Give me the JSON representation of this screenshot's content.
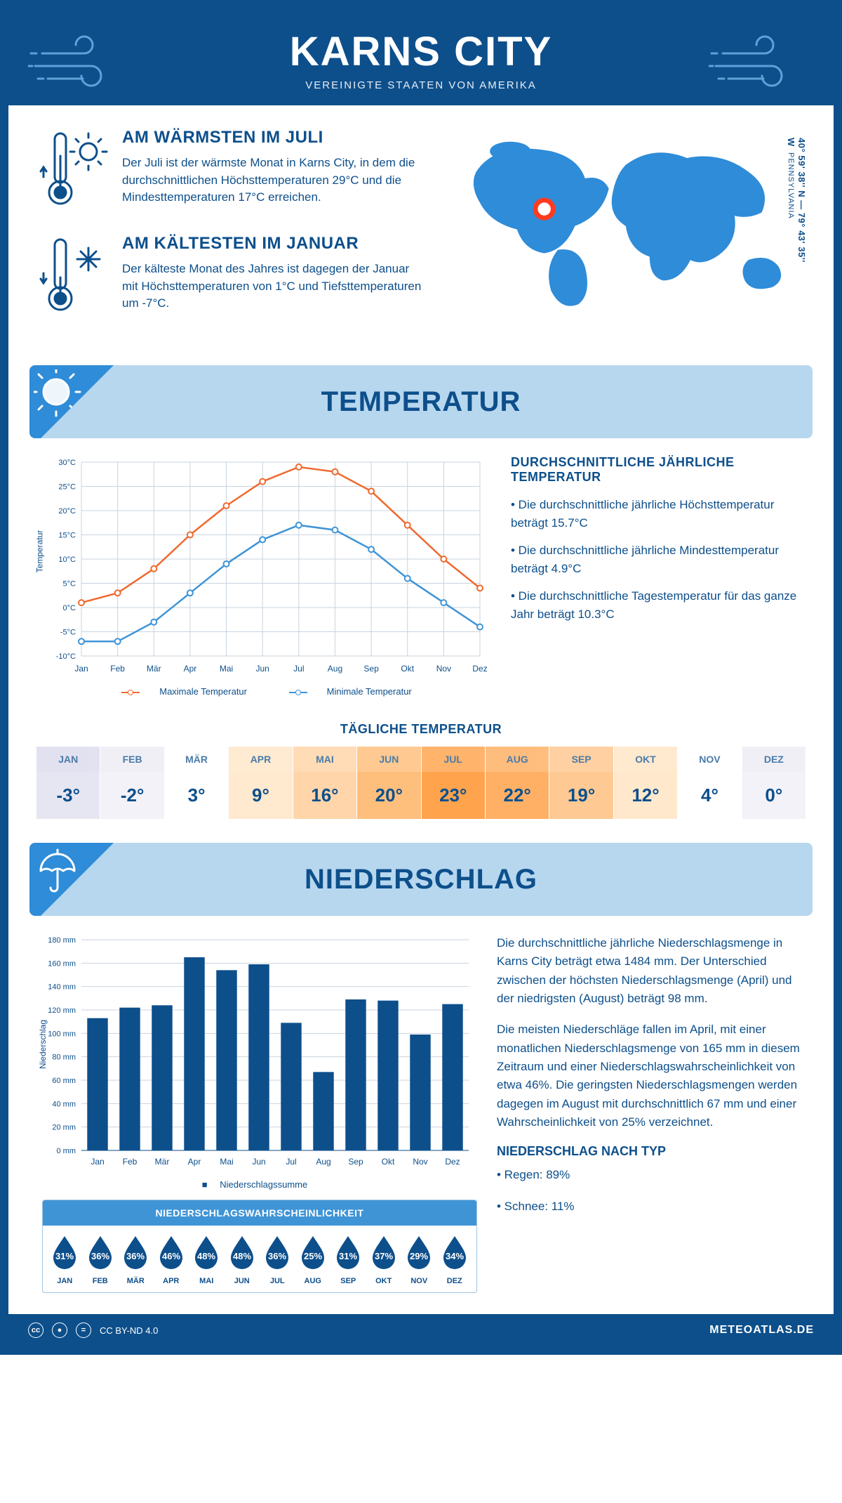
{
  "header": {
    "title": "KARNS CITY",
    "subtitle": "VEREINIGTE STAATEN VON AMERIKA"
  },
  "coords": {
    "text": "40° 59' 38'' N — 79° 43' 35'' W",
    "state": "PENNSYLVANIA"
  },
  "intro": {
    "warm": {
      "title": "AM WÄRMSTEN IM JULI",
      "body": "Der Juli ist der wärmste Monat in Karns City, in dem die durchschnittlichen Höchsttemperaturen 29°C und die Mindesttemperaturen 17°C erreichen."
    },
    "cold": {
      "title": "AM KÄLTESTEN IM JANUAR",
      "body": "Der kälteste Monat des Jahres ist dagegen der Januar mit Höchsttemperaturen von 1°C und Tiefsttemperaturen um -7°C."
    }
  },
  "sections": {
    "temp_banner": "TEMPERATUR",
    "precip_banner": "NIEDERSCHLAG"
  },
  "months": [
    "Jan",
    "Feb",
    "Mär",
    "Apr",
    "Mai",
    "Jun",
    "Jul",
    "Aug",
    "Sep",
    "Okt",
    "Nov",
    "Dez"
  ],
  "months_uc": [
    "JAN",
    "FEB",
    "MÄR",
    "APR",
    "MAI",
    "JUN",
    "JUL",
    "AUG",
    "SEP",
    "OKT",
    "NOV",
    "DEZ"
  ],
  "temp_chart": {
    "type": "line",
    "ylabel": "Temperatur",
    "ylim": [
      -10,
      30
    ],
    "ytick_step": 5,
    "y_suffix": "°C",
    "max_series": {
      "label": "Maximale Temperatur",
      "color": "#ef6a2f",
      "values": [
        1,
        3,
        8,
        15,
        21,
        26,
        29,
        28,
        24,
        17,
        10,
        4
      ]
    },
    "min_series": {
      "label": "Minimale Temperatur",
      "color": "#3f94d6",
      "values": [
        -7,
        -7,
        -3,
        3,
        9,
        14,
        17,
        16,
        12,
        6,
        1,
        -4
      ]
    },
    "grid_color": "#c9d3df",
    "background_color": "#ffffff"
  },
  "temp_text": {
    "heading": "DURCHSCHNITTLICHE JÄHRLICHE TEMPERATUR",
    "bullets": [
      "• Die durchschnittliche jährliche Höchsttemperatur beträgt 15.7°C",
      "• Die durchschnittliche jährliche Mindesttemperatur beträgt 4.9°C",
      "• Die durchschnittliche Tagestemperatur für das ganze Jahr beträgt 10.3°C"
    ]
  },
  "daily": {
    "title": "TÄGLICHE TEMPERATUR",
    "values": [
      "-3°",
      "-2°",
      "3°",
      "9°",
      "16°",
      "20°",
      "23°",
      "22°",
      "19°",
      "12°",
      "4°",
      "0°"
    ],
    "top_colors": [
      "#d8d8ec",
      "#eceaf4",
      "#ffffff",
      "#ffe4c4",
      "#ffcf9e",
      "#ffb86d",
      "#ff9a3a",
      "#ffa852",
      "#ffc182",
      "#ffe2bf",
      "#ffffff",
      "#eceaf4"
    ],
    "val_colors": [
      "#e6e6f2",
      "#f3f2f8",
      "#ffffff",
      "#ffe9cf",
      "#ffd5a9",
      "#ffbf7c",
      "#ffa34d",
      "#ffb064",
      "#ffc993",
      "#ffe8cc",
      "#ffffff",
      "#f3f2f8"
    ]
  },
  "precip_chart": {
    "type": "bar",
    "ylabel": "Niederschlag",
    "ylim": [
      0,
      180
    ],
    "ytick_step": 20,
    "y_suffix": " mm",
    "values": [
      113,
      122,
      124,
      165,
      154,
      159,
      109,
      67,
      129,
      128,
      99,
      125
    ],
    "bar_color": "#0d4f8b",
    "grid_color": "#c9d3df",
    "legend": "Niederschlagssumme"
  },
  "precip_text": {
    "p1": "Die durchschnittliche jährliche Niederschlagsmenge in Karns City beträgt etwa 1484 mm. Der Unterschied zwischen der höchsten Niederschlagsmenge (April) und der niedrigsten (August) beträgt 98 mm.",
    "p2": "Die meisten Niederschläge fallen im April, mit einer monatlichen Niederschlagsmenge von 165 mm in diesem Zeitraum und einer Niederschlagswahrscheinlichkeit von etwa 46%. Die geringsten Niederschlagsmengen werden dagegen im August mit durchschnittlich 67 mm und einer Wahrscheinlichkeit von 25% verzeichnet.",
    "type_heading": "NIEDERSCHLAG NACH TYP",
    "types": [
      "• Regen: 89%",
      "• Schnee: 11%"
    ]
  },
  "prob": {
    "heading": "NIEDERSCHLAGSWAHRSCHEINLICHKEIT",
    "values": [
      "31%",
      "36%",
      "36%",
      "46%",
      "48%",
      "48%",
      "36%",
      "25%",
      "31%",
      "37%",
      "29%",
      "34%"
    ],
    "drop_color": "#0d4f8b"
  },
  "footer": {
    "license": "CC BY-ND 4.0",
    "site": "METEOATLAS.DE"
  },
  "colors": {
    "primary": "#0d4f8b",
    "accent": "#2f8cd8",
    "banner_bg": "#b7d7ef"
  }
}
